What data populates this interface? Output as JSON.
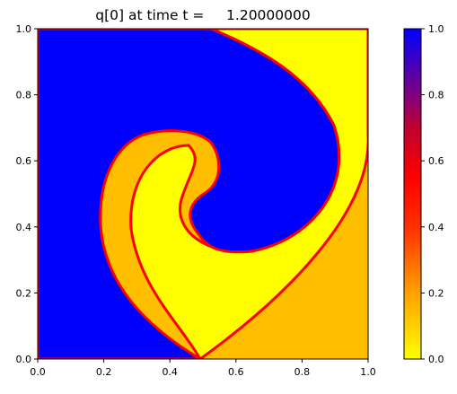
{
  "chart_data": {
    "type": "heatmap",
    "title": "q[0] at time t =     1.20000000",
    "xlabel": "",
    "ylabel": "",
    "xlim": [
      0.0,
      1.0
    ],
    "ylim": [
      0.0,
      1.0
    ],
    "x_ticks": [
      "0.0",
      "0.2",
      "0.4",
      "0.6",
      "0.8",
      "1.0"
    ],
    "y_ticks": [
      "0.0",
      "0.2",
      "0.4",
      "0.6",
      "0.8",
      "1.0"
    ],
    "grid": false,
    "colorbar": {
      "label": "",
      "range": [
        0.0,
        1.0
      ],
      "ticks": [
        "0.0",
        "0.2",
        "0.4",
        "0.6",
        "0.8",
        "1.0"
      ],
      "colormap": [
        {
          "value": 0.0,
          "color": "#ffff00"
        },
        {
          "value": 0.2,
          "color": "#ffa000"
        },
        {
          "value": 0.4,
          "color": "#ff3000"
        },
        {
          "value": 0.55,
          "color": "#ff0000"
        },
        {
          "value": 0.7,
          "color": "#c00030"
        },
        {
          "value": 0.8,
          "color": "#800080"
        },
        {
          "value": 1.0,
          "color": "#0000ff"
        }
      ]
    },
    "regions": [
      {
        "name": "blue",
        "value": 1.0,
        "color": "#0000ff"
      },
      {
        "name": "yellow",
        "value": 0.0,
        "color": "#ffff00"
      },
      {
        "name": "orange",
        "value": 0.2,
        "color": "#ffbf00"
      }
    ],
    "interface_color": "#ff0000"
  }
}
